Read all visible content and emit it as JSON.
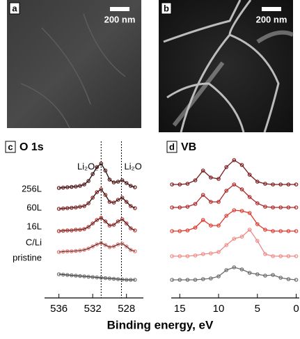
{
  "panels": [
    {
      "label": "a",
      "scale_bar": "200 nm"
    },
    {
      "label": "b",
      "scale_bar": "200 nm"
    }
  ],
  "x_label": "Binding energy, eV",
  "chart_data": [
    {
      "type": "line",
      "panel_label": "c",
      "title": "O 1s",
      "x": [
        536,
        535.5,
        535,
        534.5,
        534,
        533.5,
        533,
        532.5,
        532,
        531.5,
        531,
        530.5,
        530,
        529.5,
        529,
        528.5,
        528,
        527.5,
        527
      ],
      "series": [
        {
          "name": "256L",
          "color": "#5a1010",
          "values": [
            0,
            0.5,
            1,
            1.5,
            2,
            3,
            5,
            10,
            20,
            30,
            35,
            25,
            12,
            8,
            9,
            11,
            7,
            3,
            1
          ]
        },
        {
          "name": "60L",
          "color": "#8e1c1c",
          "values": [
            0,
            0.5,
            1,
            1.5,
            2,
            3,
            4,
            8,
            16,
            24,
            28,
            20,
            10,
            9,
            13,
            16,
            10,
            4,
            1
          ]
        },
        {
          "name": "16L",
          "color": "#c2302a",
          "values": [
            0,
            0.5,
            1,
            1,
            2,
            2,
            3,
            6,
            11,
            16,
            19,
            14,
            8,
            9,
            14,
            17,
            11,
            4,
            1
          ]
        },
        {
          "name": "C/Li",
          "color": "#e8706a",
          "values": [
            0,
            0.5,
            1,
            1,
            1.5,
            2,
            3,
            5,
            8,
            11,
            13,
            10,
            7,
            8,
            11,
            12,
            8,
            3,
            1
          ]
        },
        {
          "name": "pristine",
          "color": "#707070",
          "values": [
            8,
            7.5,
            7,
            6.5,
            6,
            5.5,
            5,
            4.5,
            4,
            3.5,
            3,
            2.5,
            2,
            1.5,
            1,
            0.5,
            0,
            0,
            0
          ]
        }
      ],
      "xlim": [
        537.7,
        526
      ],
      "xticks": [
        536,
        532,
        528
      ],
      "annotations": [
        {
          "text": "Li₂O₂",
          "x": 531
        },
        {
          "text": "Li₂O",
          "x": 528.6
        }
      ]
    },
    {
      "type": "line",
      "panel_label": "d",
      "title": "VB",
      "x": [
        16,
        15,
        14,
        13,
        12,
        11,
        10,
        9,
        8,
        7,
        6,
        5,
        4,
        3,
        2,
        1,
        0
      ],
      "series": [
        {
          "color": "#7a1818",
          "values": [
            0,
            0,
            1,
            6,
            20,
            10,
            8,
            25,
            35,
            28,
            14,
            4,
            1,
            0,
            0,
            0,
            0
          ]
        },
        {
          "color": "#b02525",
          "values": [
            0,
            0,
            1,
            5,
            18,
            8,
            8,
            24,
            33,
            26,
            15,
            6,
            1,
            0,
            0,
            0,
            0
          ]
        },
        {
          "color": "#e03a30",
          "values": [
            0,
            0,
            1,
            5,
            16,
            8,
            8,
            22,
            30,
            29,
            26,
            10,
            2,
            0,
            0,
            0,
            0
          ]
        },
        {
          "color": "#f08a86",
          "values": [
            0,
            0,
            0,
            1,
            3,
            4,
            6,
            16,
            25,
            28,
            38,
            22,
            3,
            0,
            0,
            0,
            0
          ]
        },
        {
          "color": "#6a6a6a",
          "values": [
            0,
            0,
            0,
            0,
            1,
            2,
            5,
            14,
            18,
            15,
            10,
            8,
            6,
            7,
            3,
            1,
            0
          ]
        }
      ],
      "xlim": [
        16.1,
        -0.4
      ],
      "xticks": [
        15,
        10,
        5,
        0
      ]
    }
  ]
}
